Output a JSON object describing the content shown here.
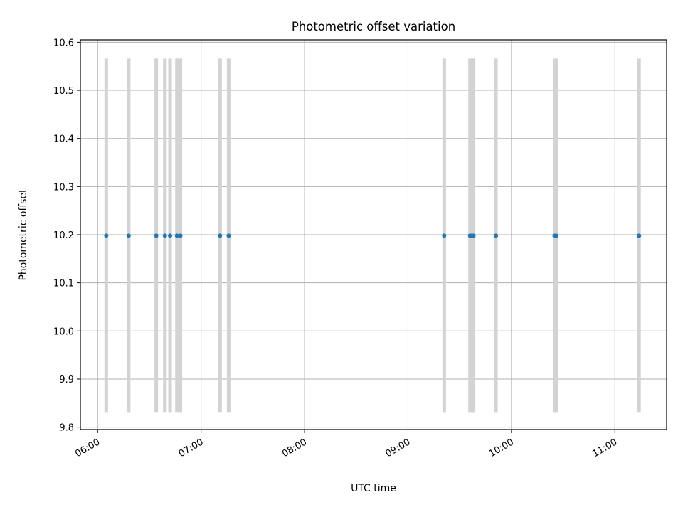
{
  "chart_data": {
    "type": "scatter",
    "title": "Photometric offset variation",
    "xlabel": "UTC time",
    "ylabel": "Photometric offset",
    "x_tick_labels": [
      "06:00",
      "07:00",
      "08:00",
      "09:00",
      "10:00",
      "11:00"
    ],
    "y_tick_labels": [
      "9.8",
      "9.9",
      "10.0",
      "10.1",
      "10.2",
      "10.3",
      "10.4",
      "10.5",
      "10.6"
    ],
    "xlim": [
      "05:50",
      "11:30"
    ],
    "ylim": [
      9.795,
      10.605
    ],
    "grid": true,
    "marker_color": "#1f77b4",
    "error_bar_color": "#d3d3d3",
    "points": [
      {
        "x": "06:05",
        "y": 10.198,
        "y_error": 0.368
      },
      {
        "x": "06:18",
        "y": 10.198,
        "y_error": 0.368
      },
      {
        "x": "06:34",
        "y": 10.198,
        "y_error": 0.368
      },
      {
        "x": "06:39",
        "y": 10.198,
        "y_error": 0.368
      },
      {
        "x": "06:42",
        "y": 10.198,
        "y_error": 0.368
      },
      {
        "x": "06:46",
        "y": 10.198,
        "y_error": 0.368
      },
      {
        "x": "06:48",
        "y": 10.198,
        "y_error": 0.368
      },
      {
        "x": "07:11",
        "y": 10.198,
        "y_error": 0.368
      },
      {
        "x": "07:16",
        "y": 10.198,
        "y_error": 0.368
      },
      {
        "x": "09:21",
        "y": 10.198,
        "y_error": 0.368
      },
      {
        "x": "09:36",
        "y": 10.198,
        "y_error": 0.368
      },
      {
        "x": "09:37",
        "y": 10.198,
        "y_error": 0.368
      },
      {
        "x": "09:38",
        "y": 10.198,
        "y_error": 0.368
      },
      {
        "x": "09:51",
        "y": 10.198,
        "y_error": 0.368
      },
      {
        "x": "10:25",
        "y": 10.198,
        "y_error": 0.368
      },
      {
        "x": "10:26",
        "y": 10.198,
        "y_error": 0.368
      },
      {
        "x": "11:14",
        "y": 10.198,
        "y_error": 0.368
      }
    ]
  }
}
